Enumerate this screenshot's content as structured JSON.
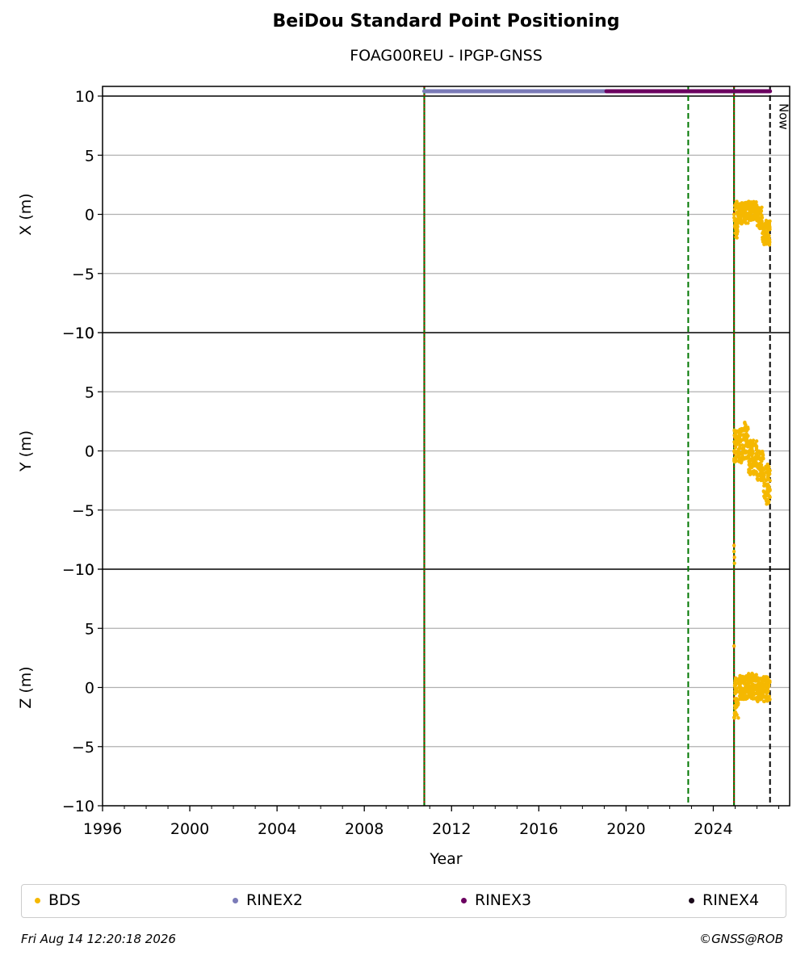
{
  "chart_data": {
    "type": "scatter",
    "title": "BeiDou Standard Point Positioning",
    "subtitle": "FOAG00REU - IPGP-GNSS",
    "xlabel": "Year",
    "xlim": [
      1996.0,
      2027.5
    ],
    "x_ticks": [
      "1996",
      "2000",
      "2004",
      "2008",
      "2012",
      "2016",
      "2020",
      "2024"
    ],
    "now_label": "Now",
    "now_year": 2026.6,
    "event_lines": [
      {
        "year": 2010.75,
        "style": "solid",
        "colors": [
          "#cc0000",
          "#007700"
        ]
      },
      {
        "year": 2022.85,
        "style": "dashed",
        "colors": [
          "#007700"
        ]
      },
      {
        "year": 2024.95,
        "style": "solid",
        "colors": [
          "#cc0000",
          "#007700"
        ]
      }
    ],
    "rinex_bars": [
      {
        "name": "RINEX2",
        "start": 2010.75,
        "end": 2019.1,
        "color": "#7b7bb8"
      },
      {
        "name": "RINEX3",
        "start": 2019.1,
        "end": 2026.6,
        "color": "#6b0060"
      }
    ],
    "panels": [
      {
        "ylabel": "X (m)",
        "ylim": [
          -10,
          10
        ],
        "y_ticks": [
          "10",
          "5",
          "0",
          "−5",
          "−10"
        ],
        "segments": [
          {
            "x0": 2024.95,
            "x1": 2025.15,
            "lo": -2.0,
            "hi": 1.1
          },
          {
            "x0": 2025.15,
            "x1": 2025.6,
            "lo": -0.8,
            "hi": 1.0
          },
          {
            "x0": 2025.6,
            "x1": 2026.0,
            "lo": -0.5,
            "hi": 1.1
          },
          {
            "x0": 2026.0,
            "x1": 2026.25,
            "lo": -1.2,
            "hi": 0.6
          },
          {
            "x0": 2026.25,
            "x1": 2026.6,
            "lo": -2.6,
            "hi": -0.5
          }
        ]
      },
      {
        "ylabel": "Y (m)",
        "ylim": [
          -10,
          10
        ],
        "y_ticks": [
          "10",
          "5",
          "0",
          "−5",
          "−10"
        ],
        "segments": [
          {
            "x0": 2024.95,
            "x1": 2025.4,
            "lo": -1.0,
            "hi": 2.0
          },
          {
            "x0": 2025.4,
            "x1": 2025.6,
            "lo": -0.8,
            "hi": 2.5
          },
          {
            "x0": 2025.6,
            "x1": 2026.0,
            "lo": -2.0,
            "hi": 1.0
          },
          {
            "x0": 2026.0,
            "x1": 2026.3,
            "lo": -2.5,
            "hi": 0.0
          },
          {
            "x0": 2026.3,
            "x1": 2026.6,
            "lo": -4.5,
            "hi": -1.0
          }
        ],
        "outliers": [
          [
            2024.95,
            -8.0
          ],
          [
            2024.95,
            -8.5
          ],
          [
            2024.97,
            -9.0
          ],
          [
            2024.97,
            -9.5
          ]
        ]
      },
      {
        "ylabel": "Z (m)",
        "ylim": [
          -10,
          10
        ],
        "y_ticks": [
          "10",
          "5",
          "0",
          "−5",
          "−10"
        ],
        "segments": [
          {
            "x0": 2024.95,
            "x1": 2025.15,
            "lo": -2.6,
            "hi": 1.1
          },
          {
            "x0": 2025.15,
            "x1": 2025.6,
            "lo": -1.0,
            "hi": 1.0
          },
          {
            "x0": 2025.6,
            "x1": 2026.0,
            "lo": -1.0,
            "hi": 1.2
          },
          {
            "x0": 2026.0,
            "x1": 2026.6,
            "lo": -1.2,
            "hi": 0.9
          }
        ],
        "outliers": [
          [
            2024.95,
            3.5
          ]
        ]
      }
    ],
    "series": [
      {
        "name": "BDS",
        "color": "#f5b800"
      },
      {
        "name": "RINEX2",
        "color": "#7b7bb8"
      },
      {
        "name": "RINEX3",
        "color": "#6b0060"
      },
      {
        "name": "RINEX4",
        "color": "#1a0a1a"
      }
    ],
    "legend_position": "bottom"
  },
  "footer": {
    "timestamp": "Fri Aug 14 12:20:18 2026",
    "credit": "©GNSS@ROB"
  }
}
